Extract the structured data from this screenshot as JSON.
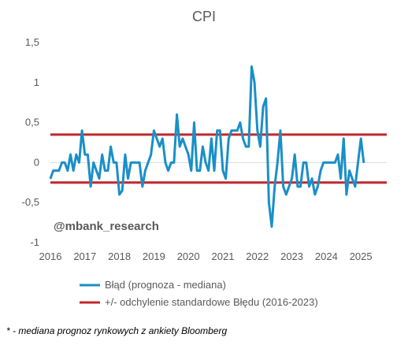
{
  "chart_data": {
    "type": "line",
    "title": "CPI",
    "watermark": "@mbank_research",
    "footnote": "* - mediana prognoz rynkowych z ankiety Bloomberg",
    "ylim": [
      -1,
      1.5
    ],
    "yticks": [
      -1,
      -0.5,
      0,
      0.5,
      1,
      1.5
    ],
    "ytick_labels": [
      "-1",
      "-0,5",
      "0",
      "0,5",
      "1",
      "1,5"
    ],
    "xlim": [
      2016.0,
      2025.75
    ],
    "xticks": [
      2016,
      2017,
      2018,
      2019,
      2020,
      2021,
      2022,
      2023,
      2024,
      2025
    ],
    "xtick_labels": [
      "2016",
      "2017",
      "2018",
      "2019",
      "2020",
      "2021",
      "2022",
      "2023",
      "2024",
      "2025"
    ],
    "grid": false,
    "legend_position": "bottom",
    "colors": {
      "series": "#1a8fc7",
      "bands": "#c0282d",
      "zero_line": "#d9d9d9",
      "text": "#595959"
    },
    "series": [
      {
        "name": "Błąd (prognoza - mediana)",
        "start": 2016.0,
        "step_months": 1,
        "values": [
          -0.2,
          -0.1,
          -0.1,
          -0.1,
          0.0,
          0.0,
          -0.1,
          0.1,
          -0.1,
          0.1,
          0.0,
          0.4,
          0.1,
          0.1,
          -0.3,
          0.0,
          -0.1,
          -0.2,
          0.1,
          -0.1,
          -0.1,
          0.2,
          0.0,
          0.0,
          -0.4,
          -0.35,
          0.1,
          -0.2,
          0.0,
          0.0,
          0.0,
          0.0,
          -0.3,
          -0.1,
          0.0,
          0.1,
          0.4,
          0.3,
          0.2,
          0.3,
          0.0,
          -0.1,
          0.0,
          0.0,
          0.6,
          0.2,
          0.3,
          0.2,
          0.1,
          -0.1,
          0.5,
          -0.1,
          -0.1,
          0.2,
          0.0,
          -0.1,
          0.3,
          -0.1,
          0.4,
          0.4,
          -0.1,
          -0.2,
          0.3,
          0.4,
          0.4,
          0.4,
          0.5,
          0.3,
          0.2,
          0.2,
          1.2,
          1.0,
          0.4,
          0.2,
          0.7,
          0.8,
          -0.5,
          -0.8,
          -0.3,
          0.0,
          0.4,
          -0.3,
          -0.4,
          -0.3,
          -0.2,
          0.1,
          -0.3,
          -0.3,
          0.0,
          0.0,
          -0.3,
          -0.2,
          -0.4,
          -0.3,
          -0.1,
          0.0,
          0.0,
          0.0,
          0.0,
          0.0,
          0.1,
          -0.2,
          0.3,
          -0.4,
          -0.1,
          -0.2,
          -0.3,
          0.0,
          0.3,
          0.0
        ]
      },
      {
        "name": "+/- odchylenie standardowe Błędu (2016-2023)",
        "upper": 0.35,
        "lower": -0.25
      }
    ]
  }
}
